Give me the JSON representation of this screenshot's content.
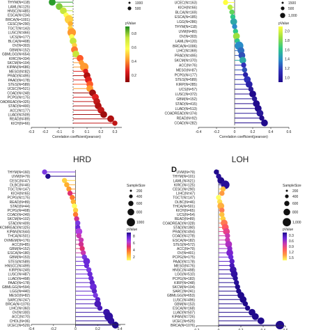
{
  "chart_data": [
    {
      "type": "scatter",
      "title": "",
      "xlabel": "Correlation coefficient(pearson)",
      "xlim": [
        -0.3,
        0.35
      ],
      "xticks": [
        "-0.3",
        "-0.2",
        "-0.1",
        "0",
        "0.1",
        "0.2",
        "0.3"
      ],
      "grid": false,
      "color_scale": {
        "title": "pValue",
        "ticks": [
          "0.8",
          "0.6",
          "0.4",
          "0.2"
        ],
        "colors": [
          "#1e8c1e",
          "#c8e63c",
          "#ffff50",
          "#ff9a2e",
          "#e02020",
          "#8b0000"
        ]
      },
      "size_legend": {
        "title": "",
        "labels": [
          "1000",
          "500"
        ]
      },
      "categories": [
        "THYM(N=118)",
        "LAML(N=125)",
        "HNSC(N=485)",
        "ESCA(N=234)",
        "BRCA(N=1001)",
        "CESC(N=290)",
        "TGCT(N=143)",
        "LUSC(N=466)",
        "UCS(N=177)",
        "BLCA(N=408)",
        "OV(N=303)",
        "GBM(N=152)",
        "GBMLGG(N=654)",
        "KIRC(N=334)",
        "SKCM(N=104)",
        "KIPAN(N=686)",
        "MESO(N=82)",
        "PRAD(N=495)",
        "PAAD(N=178)",
        "STES(N=589)",
        "UCEC(N=521)",
        "COAD(N=248)",
        "PCPG(N=175)",
        "COADREAD(N=325)",
        "STAD(N=400)",
        "ACC(N=177)",
        "LUAD(N=509)",
        "READ(N=89)",
        "KICH(N=66)"
      ],
      "values": [
        -0.15,
        -0.1,
        -0.07,
        -0.05,
        -0.03,
        -0.02,
        -0.02,
        -0.01,
        -0.01,
        0.0,
        0.01,
        0.01,
        0.02,
        0.05,
        0.06,
        0.08,
        0.09,
        0.1,
        0.11,
        0.12,
        0.12,
        0.14,
        0.16,
        0.17,
        0.18,
        0.2,
        0.22,
        0.27,
        0.3
      ],
      "colors": [
        "#2a9d2a",
        "#7fcc3a",
        "#c8e63c",
        "#ffff50",
        "#ffd040",
        "#ffb030",
        "#ffd040",
        "#ff9a2e",
        "#ffff50",
        "#c8e63c",
        "#ffd040",
        "#ff7a30",
        "#c8e63c",
        "#ff5a28",
        "#ff9a2e",
        "#ff9a2e",
        "#e02020",
        "#b01010",
        "#e02020",
        "#ff5a28",
        "#ff9a2e",
        "#a01010",
        "#e02020",
        "#c01818",
        "#b01010",
        "#c01818",
        "#a01010",
        "#b01010",
        "#c01818"
      ],
      "sizes": [
        3,
        3,
        3,
        2,
        4,
        2,
        2,
        4,
        2,
        3,
        2,
        3,
        3,
        3,
        2,
        4,
        2,
        3,
        3,
        3,
        3,
        3,
        3,
        3,
        3,
        3,
        3,
        3,
        2
      ]
    },
    {
      "type": "scatter",
      "title": "",
      "xlabel": "Correlation coefficient(pearson)",
      "xlim": [
        -0.4,
        0.6
      ],
      "xticks": [
        "-0.4",
        "-0.2",
        "0",
        "0.2",
        "0.4",
        "0.6"
      ],
      "grid": false,
      "color_scale": {
        "title": "pValue",
        "ticks": [
          "2.0",
          "1.8",
          "1.6",
          "1.4",
          "1.2",
          "1.0"
        ],
        "colors": [
          "#ffff40",
          "#9be040",
          "#2ec888",
          "#2a8cc8",
          "#3030b8",
          "#200a8c"
        ]
      },
      "size_legend": {
        "title": "",
        "labels": [
          "1500",
          "500",
          "1,000"
        ]
      },
      "categories": [
        "UCEC(N=163)",
        "KICH(N=66)",
        "BLCA(N=169)",
        "ESCA(N=185)",
        "LGG(N=286)",
        "THYM(N=118)",
        "UVM(N=80)",
        "OV(N=303)",
        "LAML(N=120)",
        "BRCA(N=1006)",
        "LIHC(N=369)",
        "PRAD(N=495)",
        "SKCM(N=370)",
        "ACC(N=76)",
        "MESO(N=87)",
        "PCPG(N=177)",
        "STES(N=589)",
        "KIRP(N=285)",
        "UCS(N=57)",
        "LUSC(N=372)",
        "GBM(N=152)",
        "STAD(N=415)",
        "LUAD(N=513)",
        "COADREAD(N=374)",
        "READ(N=92)",
        "COAD(N=282)"
      ],
      "values": [
        -0.1,
        -0.05,
        -0.03,
        -0.02,
        -0.01,
        0.0,
        0.01,
        0.02,
        0.03,
        0.05,
        0.07,
        0.08,
        0.09,
        0.1,
        0.11,
        0.12,
        0.14,
        0.16,
        0.18,
        0.2,
        0.22,
        0.24,
        0.26,
        0.28,
        0.3,
        0.33
      ],
      "colors": [
        "#ffff40",
        "#b8ec40",
        "#60d458",
        "#2ec888",
        "#2ea8a8",
        "#2a8cc8",
        "#2ec888",
        "#9be040",
        "#2ec888",
        "#2a8cc8",
        "#2e6cc0",
        "#3050b8",
        "#2ea8a8",
        "#3030b8",
        "#3050b8",
        "#2820a8",
        "#3030b8",
        "#2820a8",
        "#281898",
        "#200a8c",
        "#281898",
        "#200a8c",
        "#200a8c",
        "#281898",
        "#200a8c",
        "#200a8c"
      ],
      "sizes": [
        2,
        2,
        2,
        2,
        3,
        2,
        2,
        3,
        2,
        4,
        3,
        3,
        3,
        2,
        2,
        2,
        3,
        3,
        2,
        3,
        2,
        3,
        3,
        3,
        2,
        3
      ]
    },
    {
      "type": "scatter",
      "title": "HRD",
      "xlabel": "",
      "xlim": [
        -0.4,
        0.45
      ],
      "xticks": [
        "-0.4",
        "-0.2",
        "0",
        "0.2",
        "0.4"
      ],
      "grid": false,
      "color_scale": {
        "title": "pValue",
        "ticks": [
          "8",
          "6",
          "4",
          "2"
        ],
        "colors": [
          "#200a8c",
          "#6a28d8",
          "#b040e0",
          "#e03070",
          "#ff7a30",
          "#ffc040",
          "#ffff60"
        ]
      },
      "size_legend": {
        "title": "SampleSize",
        "labels": [
          "200",
          "400",
          "600",
          "800",
          "1000"
        ]
      },
      "categories": [
        "THYM(N=160)",
        "UVM(N=79)",
        "CESC(N=47)",
        "DLBC(N=46)",
        "TGCT(N=147)",
        "KICH(N=65)",
        "PCPG(N=175)",
        "READ(N=89)",
        "STAD(N=44)",
        "PCPG(N=408)",
        "COAD(N=249)",
        "SKCM(N=102)",
        "STAD(N=409)",
        "SKCMREAD(N=325)",
        "KIPAN(N=644)",
        "THCA(N=501)",
        "OVMEM(N=176)",
        "ACC(N=85)",
        "GBM(N=152)",
        "ESCA(N=180)",
        "GBM(N=153)",
        "STES(N=589)",
        "HNSCC(N=499)",
        "KIRP(N=249)",
        "LUSC(N=487)",
        "LUAD(N=498)",
        "PAAD(N=178)",
        "GBMLGG(N=594)",
        "LGG(N=440)",
        "MESO(N=82)",
        "SARC(N=247)",
        "BRCA(N=1076)",
        "LIHC(N=360)",
        "OV(N=300)",
        "ACC(N=70)",
        "CHOL(N=36)",
        "UCEC(N=529)"
      ],
      "values": [
        -0.28,
        -0.25,
        -0.1,
        -0.08,
        -0.06,
        -0.05,
        -0.03,
        -0.02,
        -0.01,
        0.0,
        0.0,
        0.01,
        0.02,
        0.02,
        0.03,
        0.03,
        0.05,
        0.05,
        0.06,
        0.07,
        0.08,
        0.1,
        0.1,
        0.12,
        0.13,
        0.14,
        0.15,
        0.16,
        0.17,
        0.18,
        0.2,
        0.2,
        0.22,
        0.28,
        0.3,
        0.32,
        0.36
      ],
      "colors": [
        "#7a38e0",
        "#200a8c",
        "#ffd040",
        "#ffb030",
        "#ff9a2e",
        "#e03070",
        "#ff7a30",
        "#ffb030",
        "#ffff60",
        "#ffd040",
        "#ff7a30",
        "#d03090",
        "#7a38e0",
        "#6a28d8",
        "#b040e0",
        "#c838b0",
        "#c838b0",
        "#d03090",
        "#e03070",
        "#c838b0",
        "#7a38e0",
        "#6a28d8",
        "#6a28d8",
        "#7a38e0",
        "#6a28d8",
        "#6a28d8",
        "#5a20c8",
        "#6a28d8",
        "#5a20c8",
        "#7a38e0",
        "#5a20c8",
        "#4818b8",
        "#4818b8",
        "#3a14a8",
        "#3010a0",
        "#3010a0",
        "#200a8c"
      ],
      "sizes": [
        2,
        2,
        2,
        2,
        2,
        2,
        2,
        2,
        2,
        2,
        2,
        2,
        2,
        2,
        3,
        2,
        2,
        2,
        2,
        2,
        2,
        3,
        2,
        2,
        2,
        2,
        2,
        3,
        2,
        2,
        2,
        3,
        2,
        3,
        4,
        3,
        3
      ]
    },
    {
      "type": "scatter",
      "title": "LOH",
      "xlabel": "",
      "xlim": [
        -0.2,
        0.6
      ],
      "xticks": [
        "-0.2",
        "0",
        "0.2",
        "0.4",
        "0.6"
      ],
      "grid": false,
      "color_scale": {
        "title": "pValue",
        "ticks": [
          "0.3",
          "0.6",
          "0.9",
          "1.2",
          "1.5"
        ],
        "colors": [
          "#200a8c",
          "#6a28d8",
          "#c838b0",
          "#ff5a60",
          "#ff9a40",
          "#ffff60"
        ]
      },
      "size_legend": {
        "title": "SampleSize",
        "labels": [
          "200",
          "400",
          "600",
          "800",
          "1,000"
        ]
      },
      "categories": [
        "UVM(N=79)",
        "THYM(N=101)",
        "LAML(N=621)",
        "KIRC(N=125)",
        "CESC(N=290)",
        "LIHC(N=47)",
        "TGCT(N=147)",
        "DLBC(N=46)",
        "THCA(N=501)",
        "KICH(N=65)",
        "UCS(N=54)",
        "READ(N=89)",
        "COADREAD(N=328)",
        "STAD(N=390)",
        "PRAD(N=494)",
        "COAD(N=278)",
        "ESCA(N=182)",
        "STES(N=572)",
        "ACC(N=79)",
        "OV(N=401)",
        "PCPG(N=175)",
        "PAAD(N=178)",
        "MESO(N=76)",
        "HNSC(N=498)",
        "LGG(N=510)",
        "PCPG(N=183)",
        "KIRP(N=248)",
        "SKCM(N=104)",
        "SARC(N=241)",
        "GBMLGG(N=653)",
        "LUSC(N=496)",
        "GBM(N=153)",
        "ESCA(N=168)",
        "LUAD(N=507)",
        "KIPAN(N=726)",
        "UCEC(N=525)",
        "BRCA(N=1076)"
      ],
      "values": [
        -0.02,
        0.0,
        0.02,
        0.06,
        0.04,
        0.03,
        0.0,
        0.01,
        0.02,
        0.03,
        0.03,
        0.04,
        0.05,
        0.06,
        0.07,
        0.08,
        0.08,
        0.09,
        0.1,
        0.1,
        0.11,
        0.12,
        0.12,
        0.13,
        0.14,
        0.15,
        0.16,
        0.17,
        0.18,
        0.2,
        0.22,
        0.24,
        0.26,
        0.3,
        0.33,
        0.38,
        0.55
      ],
      "colors": [
        "#200a8c",
        "#281098",
        "#200a8c",
        "#281098",
        "#ffc040",
        "#ff9a40",
        "#ffff60",
        "#ffe050",
        "#ffb040",
        "#ff7a50",
        "#ffc040",
        "#ffd040",
        "#ff7a50",
        "#ff5a60",
        "#e8408a",
        "#c838b0",
        "#c838b0",
        "#b030c0",
        "#9028c8",
        "#7a22d0",
        "#6a28d8",
        "#5a20c8",
        "#4818b8",
        "#3a14a8",
        "#3010a0",
        "#281098",
        "#281098",
        "#200a8c",
        "#200a8c",
        "#200a8c",
        "#200a8c",
        "#200a8c",
        "#200a8c",
        "#200a8c",
        "#200a8c",
        "#200a8c",
        "#200a8c"
      ],
      "sizes": [
        2,
        2,
        3,
        4,
        2,
        2,
        2,
        2,
        3,
        2,
        2,
        2,
        3,
        3,
        3,
        2,
        2,
        3,
        2,
        3,
        2,
        2,
        2,
        3,
        3,
        2,
        2,
        2,
        2,
        3,
        3,
        2,
        2,
        3,
        3,
        3,
        4
      ]
    }
  ],
  "panel_letters": {
    "d": "D"
  }
}
